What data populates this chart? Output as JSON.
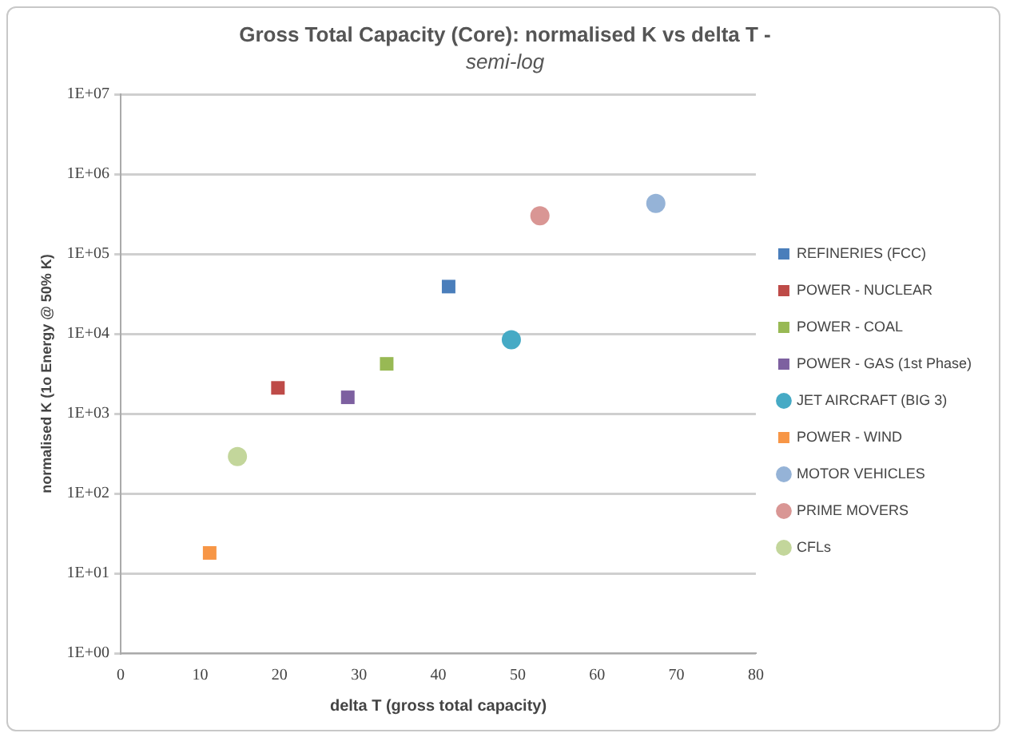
{
  "chart_data": {
    "type": "scatter",
    "title": "Gross Total Capacity (Core): normalised K vs delta T -",
    "subtitle": "semi-log",
    "xlabel": "delta T (gross total capacity)",
    "ylabel": "normalised K (1o Energy @ 50% K)",
    "log": "y",
    "grid": "y",
    "legend": "right",
    "xlim": [
      0,
      80
    ],
    "xticks": [
      0,
      10,
      20,
      30,
      40,
      50,
      60,
      70,
      80
    ],
    "ylim": [
      1,
      10000000
    ],
    "yticks": [
      {
        "value": 1,
        "label": "1E+00"
      },
      {
        "value": 10,
        "label": "1E+01"
      },
      {
        "value": 100,
        "label": "1E+02"
      },
      {
        "value": 1000,
        "label": "1E+03"
      },
      {
        "value": 10000,
        "label": "1E+04"
      },
      {
        "value": 100000,
        "label": "1E+05"
      },
      {
        "value": 1000000,
        "label": "1E+06"
      },
      {
        "value": 10000000,
        "label": "1E+07"
      }
    ],
    "series": [
      {
        "name": "REFINERIES (FCC)",
        "color": "#4a7ebb",
        "marker": "square",
        "x": [
          41.3
        ],
        "values": [
          39000
        ]
      },
      {
        "name": "POWER - NUCLEAR",
        "color": "#be4b48",
        "marker": "square",
        "x": [
          19.8
        ],
        "values": [
          2100
        ]
      },
      {
        "name": "POWER - COAL",
        "color": "#98b954",
        "marker": "square",
        "x": [
          33.5
        ],
        "values": [
          4200
        ]
      },
      {
        "name": "POWER - GAS (1st Phase)",
        "color": "#7d60a0",
        "marker": "square",
        "x": [
          28.6
        ],
        "values": [
          1600
        ]
      },
      {
        "name": "JET AIRCRAFT (BIG 3)",
        "color": "#46aac5",
        "marker": "circle",
        "x": [
          49.2
        ],
        "values": [
          8400
        ]
      },
      {
        "name": "POWER - WIND",
        "color": "#f79646",
        "marker": "square",
        "x": [
          11.2
        ],
        "values": [
          18
        ]
      },
      {
        "name": "MOTOR VEHICLES",
        "color": "#95b3d7",
        "marker": "circle",
        "x": [
          67.4
        ],
        "values": [
          430000
        ]
      },
      {
        "name": "PRIME MOVERS",
        "color": "#d99694",
        "marker": "circle",
        "x": [
          52.8
        ],
        "values": [
          300000
        ]
      },
      {
        "name": "CFLs",
        "color": "#c3d69b",
        "marker": "circle",
        "x": [
          14.7
        ],
        "values": [
          290
        ]
      }
    ]
  }
}
